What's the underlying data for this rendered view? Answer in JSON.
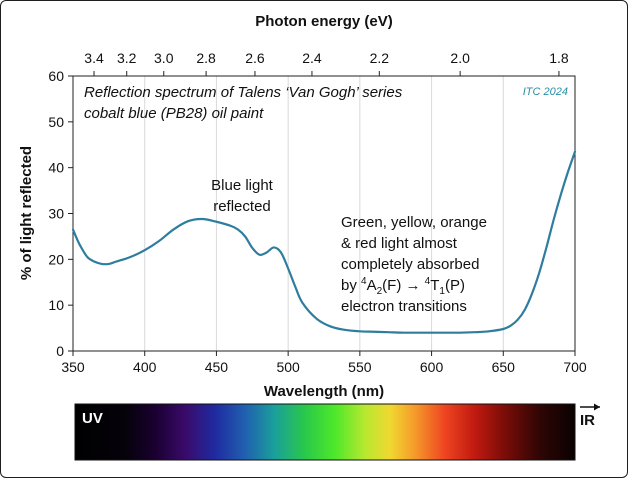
{
  "chart_data": {
    "type": "line",
    "title": "Reflection spectrum of Talens ‘Van Gogh’ series",
    "subtitle": "cobalt blue (PB28) oil paint",
    "credit": "ITC 2024",
    "xlabel": "Wavelength (nm)",
    "ylabel": "% of light reflected",
    "top_axis_label": "Photon energy (eV)",
    "xlim": [
      350,
      700
    ],
    "ylim": [
      0,
      60
    ],
    "x_ticks": [
      "350",
      "400",
      "450",
      "500",
      "550",
      "600",
      "650",
      "700"
    ],
    "y_ticks": [
      "0",
      "10",
      "20",
      "30",
      "40",
      "50",
      "60"
    ],
    "top_ticks": [
      "3.4",
      "3.2",
      "3.0",
      "2.8",
      "2.6",
      "2.4",
      "2.2",
      "2.0",
      "1.8"
    ],
    "grid": "vertical",
    "line_color": "#2e7d9e",
    "series": [
      {
        "x": [
          350,
          352,
          355,
          360,
          365,
          370,
          375,
          380,
          390,
          400,
          410,
          420,
          430,
          440,
          450,
          460,
          465,
          470,
          475,
          480,
          485,
          490,
          495,
          500,
          505,
          510,
          520,
          530,
          540,
          550,
          560,
          570,
          580,
          590,
          600,
          610,
          620,
          630,
          640,
          650,
          655,
          660,
          665,
          670,
          675,
          680,
          685,
          690,
          695,
          700
        ],
        "y": [
          26.5,
          25,
          23,
          20.5,
          19.5,
          19,
          19,
          19.5,
          20.5,
          22,
          24,
          26.5,
          28.3,
          28.8,
          28.2,
          27.3,
          26.5,
          25,
          22.5,
          21,
          21.5,
          22.6,
          21.5,
          18,
          14,
          10.5,
          7,
          5.3,
          4.6,
          4.3,
          4.2,
          4.1,
          4.0,
          4.0,
          4.0,
          4.0,
          4.0,
          4.1,
          4.3,
          4.8,
          5.5,
          6.8,
          9,
          12.5,
          17,
          22.5,
          28.5,
          34,
          39,
          43.5
        ]
      }
    ],
    "annotations": {
      "blue": [
        "Blue light",
        "reflected"
      ],
      "absorbed_1": "Green, yellow, orange",
      "absorbed_2": "& red light almost",
      "absorbed_3": "completely absorbed",
      "transition_prefix": "by ",
      "transition_sup1": "4",
      "transition_from": "A",
      "transition_sub1": "2",
      "transition_from_state": "(F) → ",
      "transition_sup2": "4",
      "transition_to": "T",
      "transition_sub2": "1",
      "transition_to_state": "(P)",
      "absorbed_5": "electron transitions"
    },
    "spectrum_bar": {
      "left_label": "UV",
      "right_label": "IR"
    }
  }
}
